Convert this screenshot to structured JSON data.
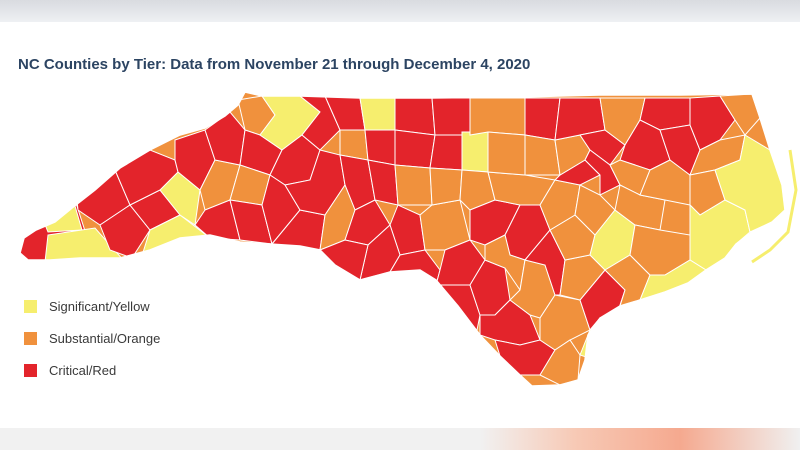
{
  "title": "NC Counties by Tier: Data from November 21 through December 4, 2020",
  "colors": {
    "yellow": "#f6ee6e",
    "orange": "#f0913d",
    "red": "#e3242b",
    "border": "#ffffff"
  },
  "legend": [
    {
      "label": "Significant/Yellow",
      "color": "#f6ee6e"
    },
    {
      "label": "Substantial/Orange",
      "color": "#f0913d"
    },
    {
      "label": "Critical/Red",
      "color": "#e3242b"
    }
  ]
}
